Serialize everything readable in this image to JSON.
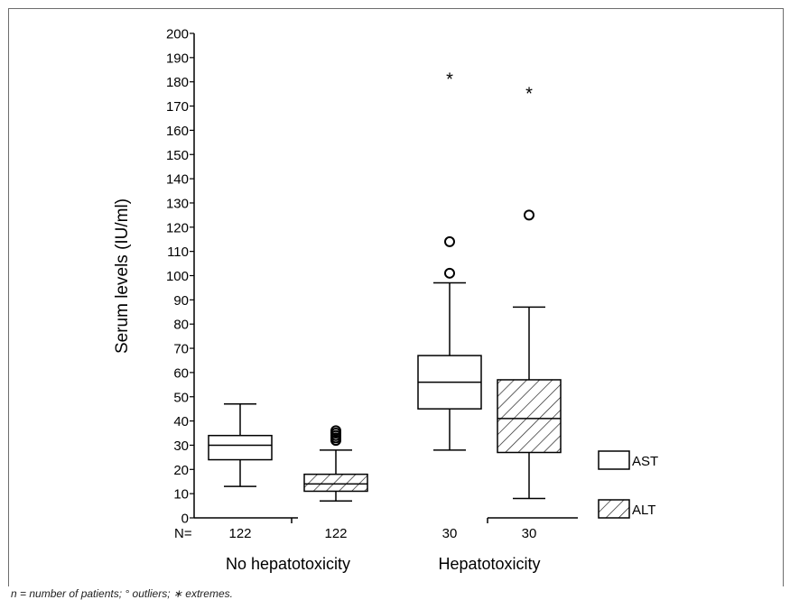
{
  "chart_data": {
    "type": "box",
    "ylabel": "Serum levels (IU/ml)",
    "ylim": [
      0,
      200
    ],
    "yticks": [
      0,
      10,
      20,
      30,
      40,
      50,
      60,
      70,
      80,
      90,
      100,
      110,
      120,
      130,
      140,
      150,
      160,
      170,
      180,
      190,
      200
    ],
    "n_prefix": "N=",
    "groups": [
      {
        "label": "No hepatotoxicity"
      },
      {
        "label": "Hepatotoxicity"
      }
    ],
    "legend": [
      {
        "name": "AST",
        "pattern": "open"
      },
      {
        "name": "ALT",
        "pattern": "hatched"
      }
    ],
    "boxes": [
      {
        "group": 0,
        "series": "AST",
        "n": "122",
        "whisker_low": 13,
        "q1": 24,
        "median": 30,
        "q3": 34,
        "whisker_high": 47,
        "outliers": [],
        "extremes": []
      },
      {
        "group": 0,
        "series": "ALT",
        "n": "122",
        "whisker_low": 7,
        "q1": 11,
        "median": 14,
        "q3": 18,
        "whisker_high": 28,
        "outliers": [
          32,
          33,
          34,
          35,
          36
        ],
        "extremes": []
      },
      {
        "group": 1,
        "series": "AST",
        "n": "30",
        "whisker_low": 28,
        "q1": 45,
        "median": 56,
        "q3": 67,
        "whisker_high": 97,
        "outliers": [
          101,
          114
        ],
        "extremes": [
          182
        ]
      },
      {
        "group": 1,
        "series": "ALT",
        "n": "30",
        "whisker_low": 8,
        "q1": 27,
        "median": 41,
        "q3": 57,
        "whisker_high": 87,
        "outliers": [
          125
        ],
        "extremes": [
          176
        ]
      }
    ]
  },
  "footnote": "n = number of patients; ° outliers; ∗ extremes."
}
